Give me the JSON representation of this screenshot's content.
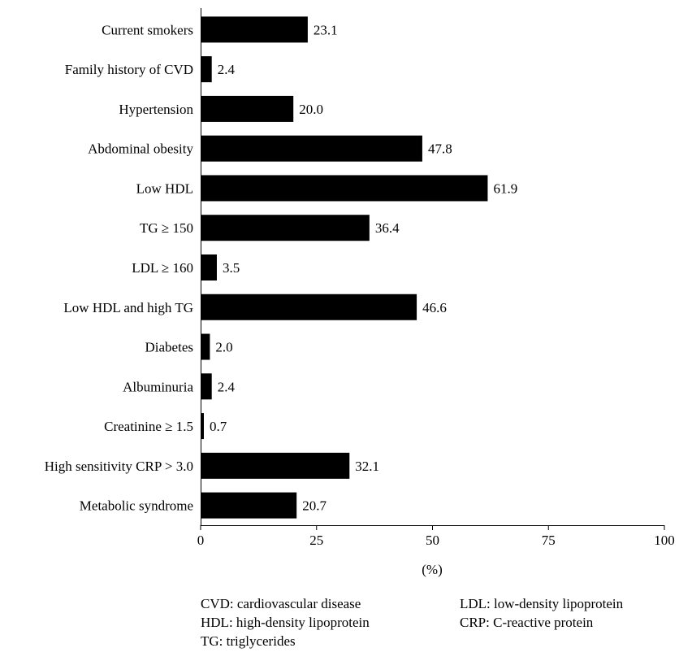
{
  "chart_data": {
    "type": "bar",
    "orientation": "horizontal",
    "categories": [
      "Current smokers",
      "Family history of CVD",
      "Hypertension",
      "Abdominal obesity",
      "Low HDL",
      "TG ≥ 150",
      "LDL ≥ 160",
      "Low HDL and high TG",
      "Diabetes",
      "Albuminuria",
      "Creatinine ≥ 1.5",
      "High sensitivity CRP > 3.0",
      "Metabolic syndrome"
    ],
    "values": [
      23.1,
      2.4,
      20.0,
      47.8,
      61.9,
      36.4,
      3.5,
      46.6,
      2.0,
      2.4,
      0.7,
      32.1,
      20.7
    ],
    "value_labels": [
      "23.1",
      "2.4",
      "20.0",
      "47.8",
      "61.9",
      "36.4",
      "3.5",
      "46.6",
      "2.0",
      "2.4",
      "0.7",
      "32.1",
      "20.7"
    ],
    "xlabel": "(%)",
    "ylabel": "",
    "title": "",
    "xlim": [
      0,
      100
    ],
    "xticks": [
      "0",
      "25",
      "50",
      "75",
      "100"
    ],
    "bar_color": "#000000",
    "grid": false,
    "legend": "none"
  },
  "notes": [
    "CVD: cardiovascular disease",
    "HDL: high-density lipoprotein",
    "TG: triglycerides",
    "LDL: low-density lipoprotein",
    "CRP: C-reactive protein"
  ]
}
